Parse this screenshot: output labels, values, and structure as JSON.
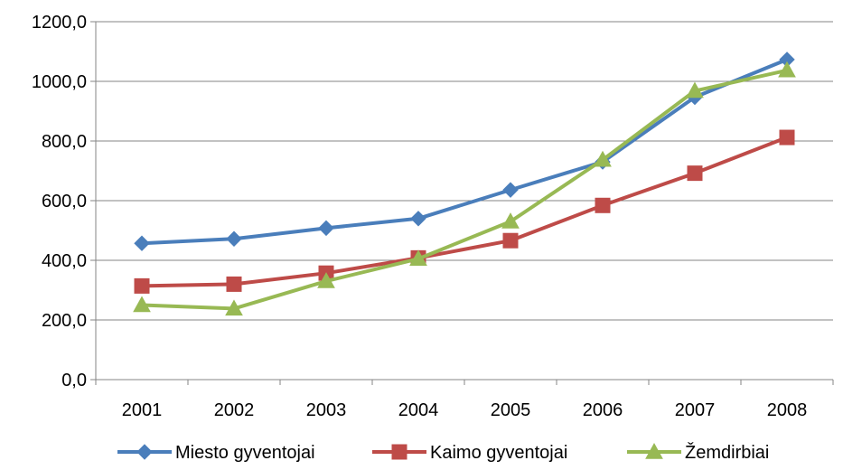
{
  "chart_data": {
    "type": "line",
    "title": "",
    "xlabel": "",
    "ylabel": "",
    "categories": [
      "2001",
      "2002",
      "2003",
      "2004",
      "2005",
      "2006",
      "2007",
      "2008"
    ],
    "ylim": [
      0,
      1200
    ],
    "yticks": [
      0,
      200,
      400,
      600,
      800,
      1000,
      1200
    ],
    "ytick_labels": [
      "0,0",
      "200,0",
      "400,0",
      "600,0",
      "800,0",
      "1000,0",
      "1200,0"
    ],
    "grid": true,
    "legend": "bottom",
    "series": [
      {
        "name": "Miesto gyventojai",
        "color": "#4A7EBB",
        "marker": "diamond",
        "values": [
          457,
          472,
          508,
          540,
          636,
          730,
          947,
          1073
        ]
      },
      {
        "name": "Kaimo gyventojai",
        "color": "#BE4B48",
        "marker": "square",
        "values": [
          314,
          320,
          357,
          408,
          466,
          584,
          692,
          812
        ]
      },
      {
        "name": "Žemdirbiai",
        "color": "#98B954",
        "marker": "triangle",
        "values": [
          250,
          238,
          330,
          405,
          530,
          737,
          968,
          1037
        ]
      }
    ]
  }
}
